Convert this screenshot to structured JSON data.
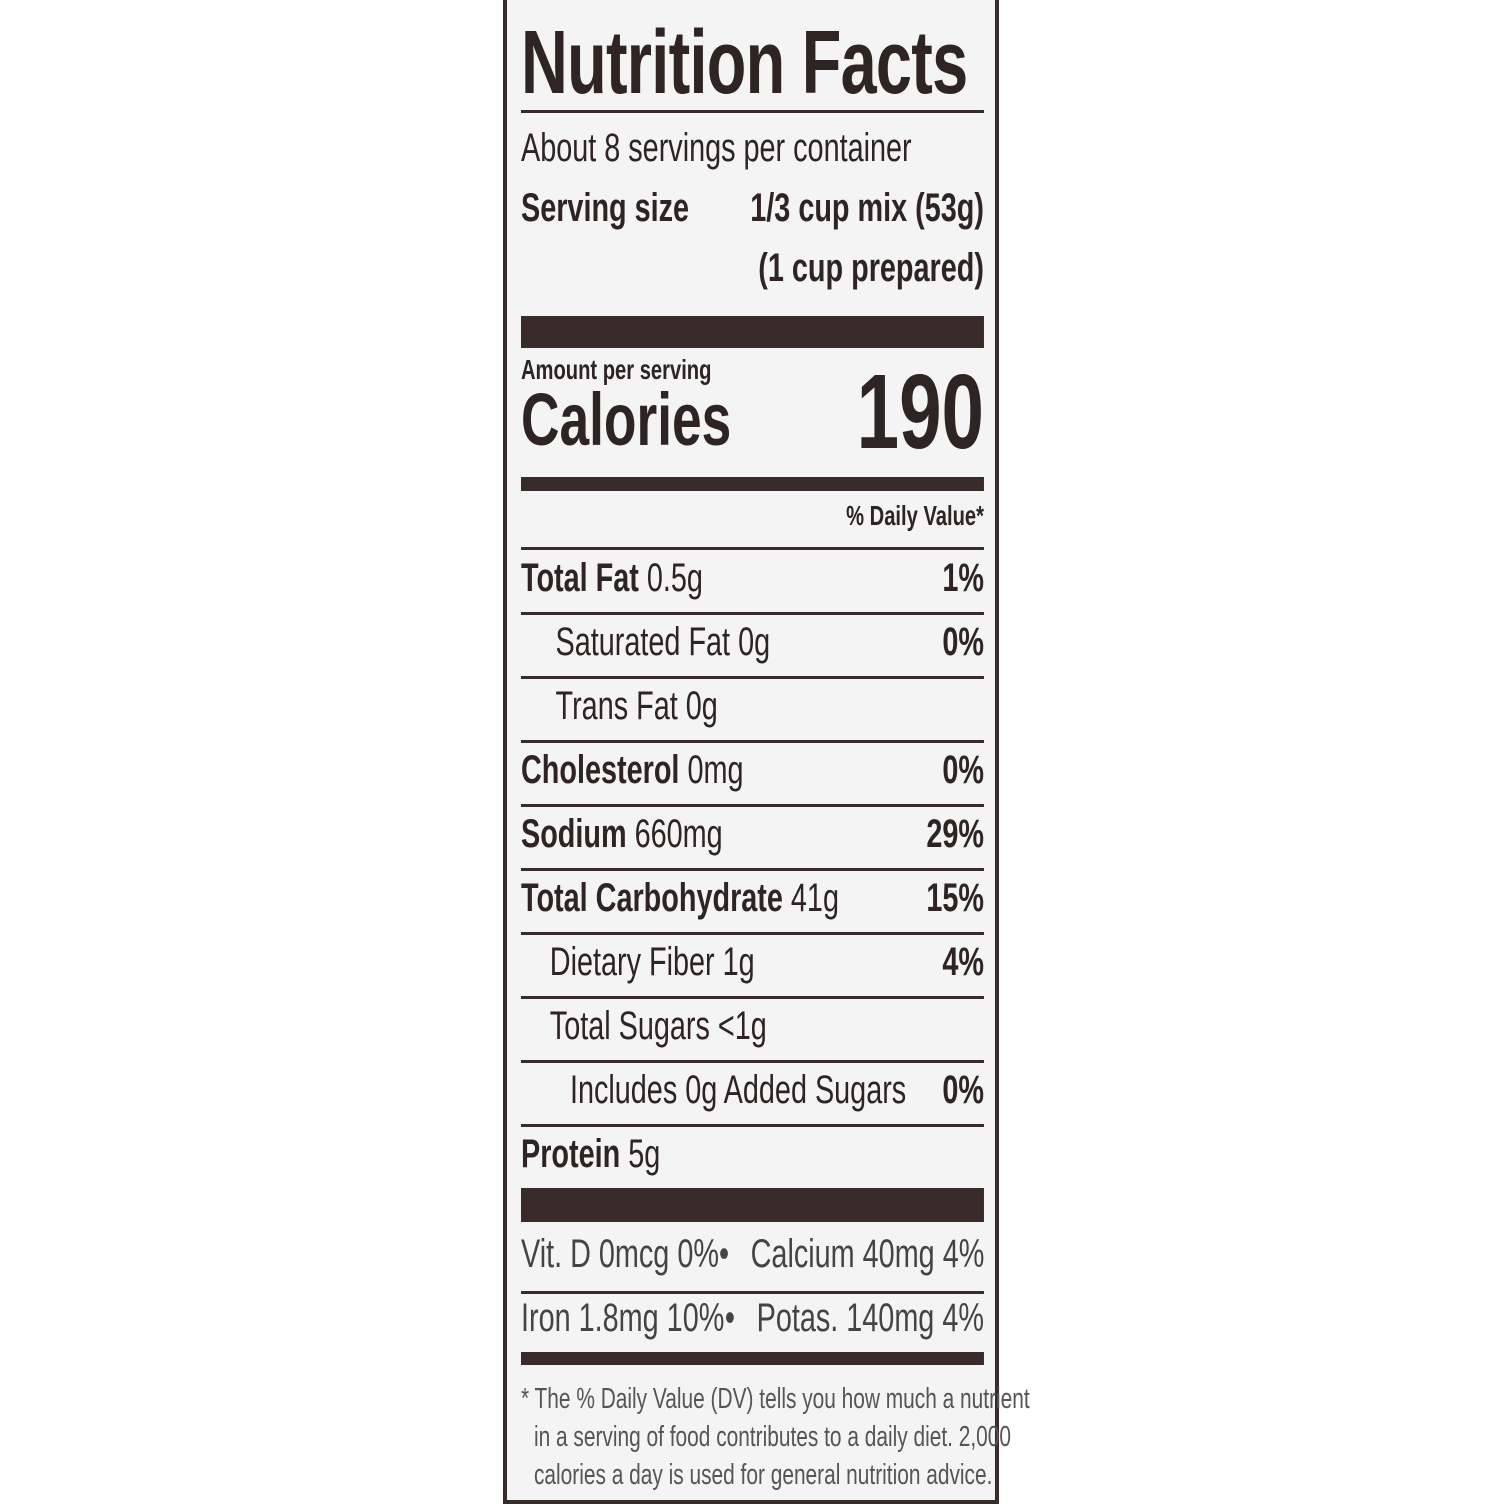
{
  "title": "Nutrition Facts",
  "servings_per_container": "About 8 servings per container",
  "serving_size": {
    "label": "Serving size",
    "value": "1/3 cup mix (53g)",
    "prepared": "(1 cup prepared)"
  },
  "amount_per_serving": "Amount per serving",
  "calories": {
    "label": "Calories",
    "value": "190"
  },
  "daily_value_header": "% Daily Value*",
  "nutrients": [
    {
      "name": "Total Fat",
      "amount": "0.5g",
      "dv": "1%"
    },
    {
      "name": "Saturated Fat",
      "amount": "0g",
      "dv": "0%"
    },
    {
      "name": "Trans Fat",
      "amount": "0g",
      "dv": ""
    },
    {
      "name": "Cholesterol",
      "amount": "0mg",
      "dv": "0%"
    },
    {
      "name": "Sodium",
      "amount": "660mg",
      "dv": "29%"
    },
    {
      "name": "Total Carbohydrate",
      "amount": "41g",
      "dv": "15%"
    },
    {
      "name": "Dietary Fiber",
      "amount": "1g",
      "dv": "4%"
    },
    {
      "name": "Total Sugars",
      "amount": "<1g",
      "dv": ""
    },
    {
      "name": "Includes 0g Added Sugars",
      "amount": "",
      "dv": "0%"
    },
    {
      "name": "Protein",
      "amount": "5g",
      "dv": ""
    }
  ],
  "micronutrients": [
    {
      "left": "Vit. D 0mcg 0%",
      "right": "Calcium 40mg 4%"
    },
    {
      "left": "Iron 1.8mg 10%",
      "right": "Potas. 140mg 4%"
    }
  ],
  "bullet": "•",
  "footnote": [
    "* The % Daily Value (DV) tells you how much a nutrient",
    "in a serving of food contributes to a daily diet. 2,000",
    "calories a day is used for general nutrition advice."
  ]
}
